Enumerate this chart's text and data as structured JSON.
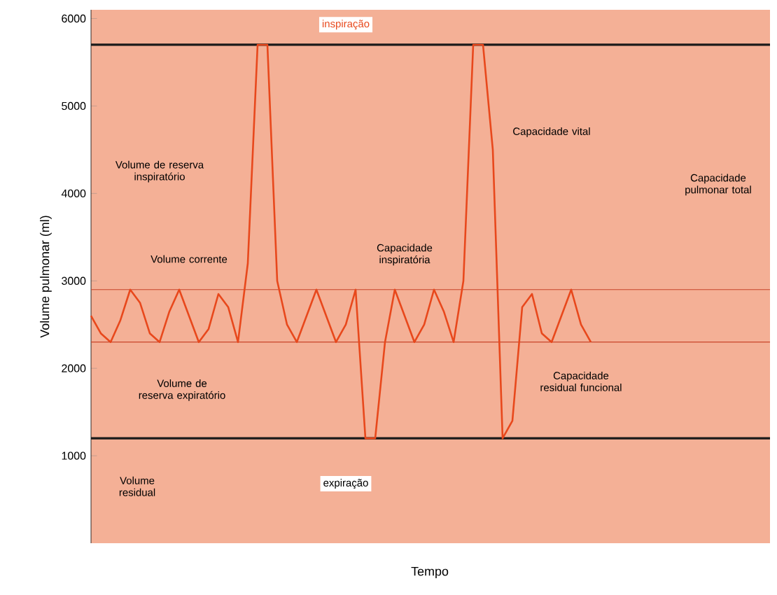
{
  "chart_data": {
    "type": "line",
    "xlabel": "Tempo",
    "ylabel": "Volume pulmonar (ml)",
    "categories": [
      null,
      null,
      null,
      null,
      null,
      null,
      null,
      null,
      null,
      null,
      null,
      null,
      null,
      null,
      null,
      null,
      null,
      null,
      null,
      null,
      null,
      null,
      null,
      null,
      null,
      null,
      null,
      null,
      null,
      null,
      null,
      null,
      null,
      null,
      null,
      null,
      null,
      null,
      null,
      null,
      null,
      null,
      null,
      null,
      null,
      null,
      null,
      null,
      null,
      null,
      null,
      null,
      null,
      null,
      null,
      null,
      null,
      null,
      null,
      null,
      null,
      null,
      null,
      null,
      null,
      null,
      null,
      null,
      null,
      null
    ],
    "series": [
      {
        "color": "#e8481c",
        "values": [
          2600,
          2400,
          2300,
          2550,
          2900,
          2750,
          2400,
          2300,
          2650,
          2900,
          2600,
          2300,
          2450,
          2850,
          2700,
          2300,
          3200,
          5700,
          5700,
          3000,
          2500,
          2300,
          2600,
          2900,
          2600,
          2300,
          2500,
          2900,
          1200,
          1200,
          2300,
          2900,
          2600,
          2300,
          2500,
          2900,
          2650,
          2300,
          3000,
          5700,
          5700,
          4500,
          1200,
          1400,
          2700,
          2850,
          2400,
          2300,
          2600,
          2900,
          2500,
          2300,
          null,
          null,
          null,
          null,
          null,
          null,
          null,
          null,
          null,
          null,
          null,
          null,
          null,
          null,
          null,
          null,
          null,
          null
        ]
      }
    ],
    "ylim": [
      0,
      6100
    ],
    "yticks": [
      1000,
      2000,
      3000,
      4000,
      5000,
      6000
    ],
    "ref_lines": [
      {
        "axis": "y",
        "value": 1200,
        "color": "#1a1a1a"
      },
      {
        "axis": "y",
        "value": 5700,
        "color": "#1a1a1a"
      },
      {
        "axis": "y",
        "value": 2300,
        "color": "#c8442a"
      },
      {
        "axis": "y",
        "value": 2900,
        "color": "#c8442a"
      }
    ],
    "annotations": [
      "Volume residual",
      "Volume de reserva expiratório",
      "Volume corrente",
      "Volume de reserva inspiratório",
      "Capacidade residual funcional",
      "Capacidade inspiratória",
      "Capacidade vital",
      "Capacidade pulmonar total",
      "expiração",
      "inspiração"
    ]
  }
}
